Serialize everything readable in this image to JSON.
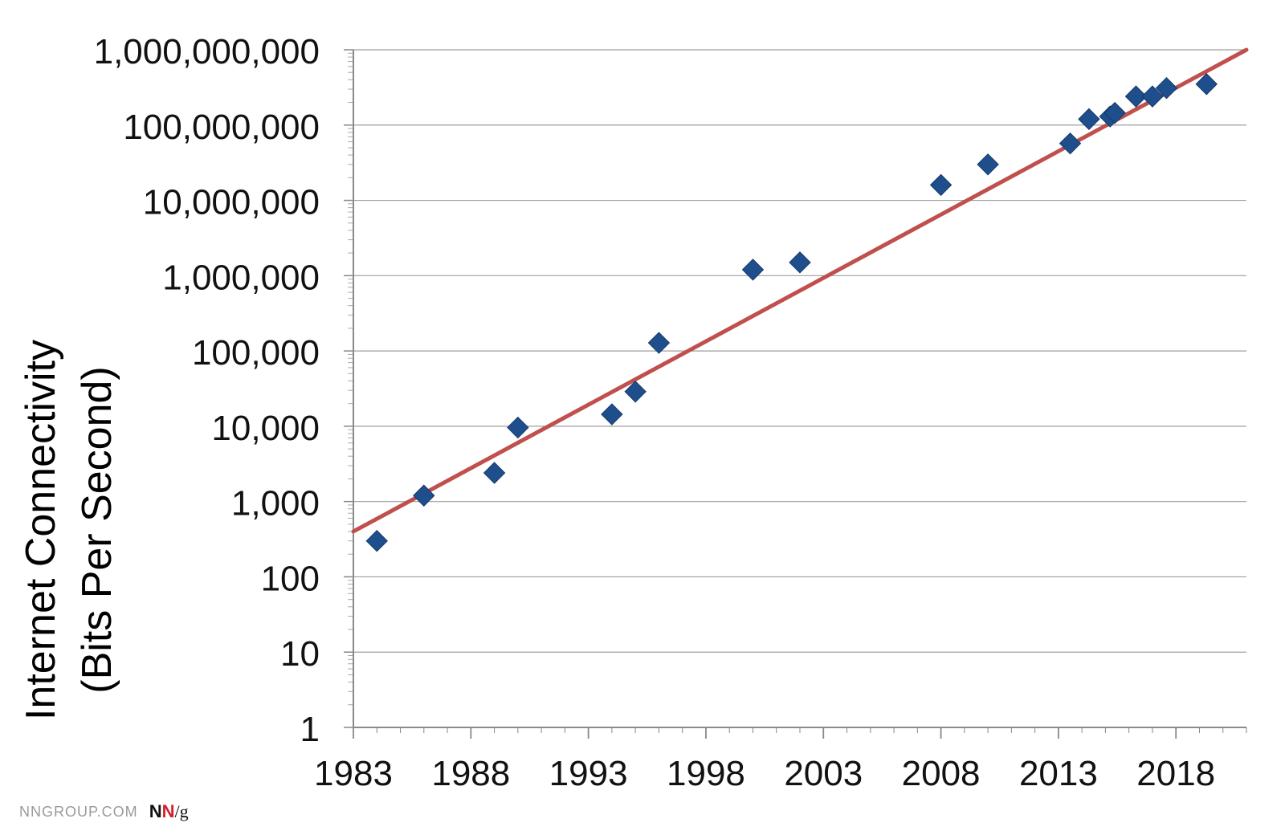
{
  "chart_data": {
    "type": "scatter",
    "title": "",
    "xlabel": "",
    "ylabel_line1": "Internet Connectivity",
    "ylabel_line2": "(Bits Per Second)",
    "y_scale": "log",
    "ylim": [
      1,
      1000000000
    ],
    "xlim": [
      1983,
      2021
    ],
    "x_tick_labels": [
      "1983",
      "1988",
      "1993",
      "1998",
      "2003",
      "2008",
      "2013",
      "2018"
    ],
    "y_tick_labels": [
      "1",
      "10",
      "100",
      "1,000",
      "10,000",
      "100,000",
      "1,000,000",
      "10,000,000",
      "100,000,000",
      "1,000,000,000"
    ],
    "grid": true,
    "series": [
      {
        "type": "scatter",
        "marker": "diamond",
        "color": "#1f4e8c",
        "x": [
          1984,
          1986,
          1989,
          1990,
          1994,
          1995,
          1996,
          2000,
          2002,
          2008,
          2010,
          2013.5,
          2014.3,
          2015.2,
          2015.4,
          2016.3,
          2017,
          2017.6,
          2019.3
        ],
        "y": [
          300,
          1200,
          2400,
          9600,
          14400,
          28800,
          128000,
          1200000,
          1500000,
          16000000,
          30000000,
          57000000,
          120000000,
          130000000,
          145000000,
          240000000,
          240000000,
          310000000,
          350000000
        ]
      },
      {
        "type": "line",
        "color": "#c0504d",
        "x": [
          1983,
          2021
        ],
        "y": [
          400,
          1000000000
        ]
      }
    ]
  },
  "footer": {
    "site": "NNGROUP.COM",
    "logo_n1": "N",
    "logo_n2": "N",
    "logo_slash": "/g"
  }
}
